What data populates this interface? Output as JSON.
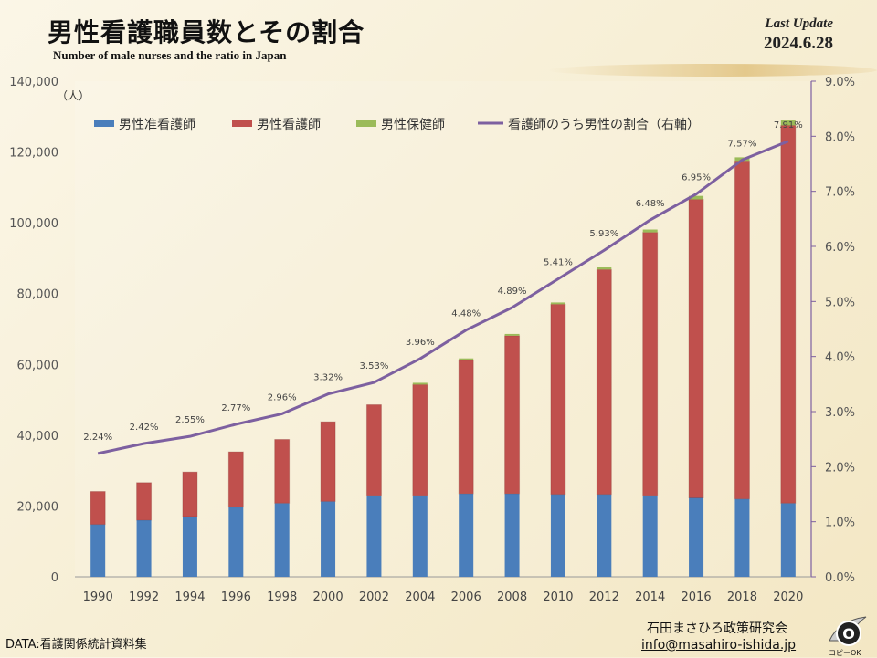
{
  "header": {
    "title": "男性看護職員数とその割合",
    "subtitle": "Number of male nurses and the ratio in Japan",
    "update_label": "Last Update",
    "update_date": "2024.6.28"
  },
  "footer": {
    "source": "DATA:看護関係統計資料集",
    "organization": "石田まさひろ政策研究会",
    "email": "info@masahiro-ishida.jp",
    "logo_text": "コピーOK"
  },
  "colors": {
    "associate_nurse": "#4a7ebb",
    "nurse": "#c0504d",
    "public_health_nurse": "#9bbb59",
    "ratio_line": "#7d60a0"
  },
  "chart_data": {
    "type": "bar",
    "stacked": true,
    "categories": [
      "1990",
      "1992",
      "1994",
      "1996",
      "1998",
      "2000",
      "2002",
      "2004",
      "2006",
      "2008",
      "2010",
      "2012",
      "2014",
      "2016",
      "2018",
      "2020"
    ],
    "y_unit_label": "（人）",
    "ylim": [
      0,
      140000
    ],
    "y_ticks": [
      "0",
      "20,000",
      "40,000",
      "60,000",
      "80,000",
      "100,000",
      "120,000",
      "140,000"
    ],
    "y2lim": [
      0,
      9
    ],
    "y2_ticks": [
      "0.0%",
      "1.0%",
      "2.0%",
      "3.0%",
      "4.0%",
      "5.0%",
      "6.0%",
      "7.0%",
      "8.0%",
      "9.0%"
    ],
    "series": [
      {
        "name": "男性准看護師",
        "values": [
          14800,
          16000,
          17000,
          19700,
          20800,
          21300,
          23000,
          23000,
          23500,
          23500,
          23300,
          23300,
          23000,
          22300,
          22000,
          20800
        ]
      },
      {
        "name": "男性看護師",
        "values": [
          9300,
          10600,
          12600,
          15600,
          18000,
          22500,
          25600,
          31300,
          37700,
          44600,
          53700,
          63500,
          74300,
          84300,
          95500,
          106700
        ]
      },
      {
        "name": "男性保健師",
        "values": [
          0,
          0,
          0,
          0,
          0,
          0,
          0,
          500,
          500,
          500,
          500,
          600,
          800,
          1000,
          1000,
          1400
        ]
      }
    ],
    "line": {
      "name": "看護師のうち男性の割合（右軸）",
      "values": [
        2.24,
        2.42,
        2.55,
        2.77,
        2.96,
        3.32,
        3.53,
        3.96,
        4.48,
        4.89,
        5.41,
        5.93,
        6.48,
        6.95,
        7.57,
        7.91
      ],
      "labels": [
        "2.24%",
        "2.42%",
        "2.55%",
        "2.77%",
        "2.96%",
        "3.32%",
        "3.53%",
        "3.96%",
        "4.48%",
        "4.89%",
        "5.41%",
        "5.93%",
        "6.48%",
        "6.95%",
        "7.57%",
        "7.91%"
      ]
    },
    "legend_position": "top"
  }
}
